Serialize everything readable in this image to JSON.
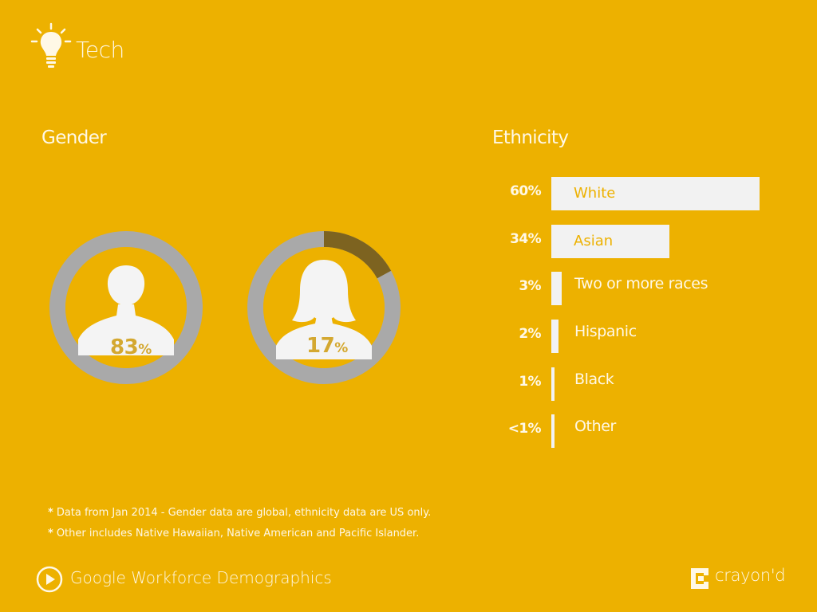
{
  "header": {
    "title": "Tech",
    "icon": "lightbulb-icon"
  },
  "footer": {
    "title": "Google Workforce Demographics",
    "brand": "crayon'd",
    "play_icon": "play-icon"
  },
  "colors": {
    "background": "#EDB100",
    "male_ring": [
      "#3E3420",
      "#A37F1A"
    ],
    "female_ring": "#7D6320",
    "ring_track": "#A9A9A9",
    "bar": "#F2F2F2",
    "percent_text": "#D4A830"
  },
  "footnotes": [
    {
      "star": "*",
      "text": "Data from Jan 2014 - Gender data are global, ethnicity data are US only."
    },
    {
      "star": "*",
      "text": "Other includes Native Hawaiian, Native American and Pacific Islander."
    }
  ],
  "chart_data": [
    {
      "type": "pie",
      "title": "Gender",
      "slices": [
        {
          "name": "male",
          "value": 83,
          "label_number": "83",
          "label_unit": "%"
        },
        {
          "name": "female",
          "value": 17,
          "label_number": "17",
          "label_unit": "%"
        }
      ]
    },
    {
      "type": "bar",
      "title": "Ethnicity",
      "orientation": "horizontal",
      "categories": [
        "White",
        "Asian",
        "Two or more races",
        "Hispanic",
        "Black",
        "Other"
      ],
      "values": [
        60,
        34,
        3,
        2,
        1,
        0.5
      ],
      "value_labels": [
        "60%",
        "34%",
        "3%",
        "2%",
        "1%",
        "<1%"
      ]
    }
  ]
}
